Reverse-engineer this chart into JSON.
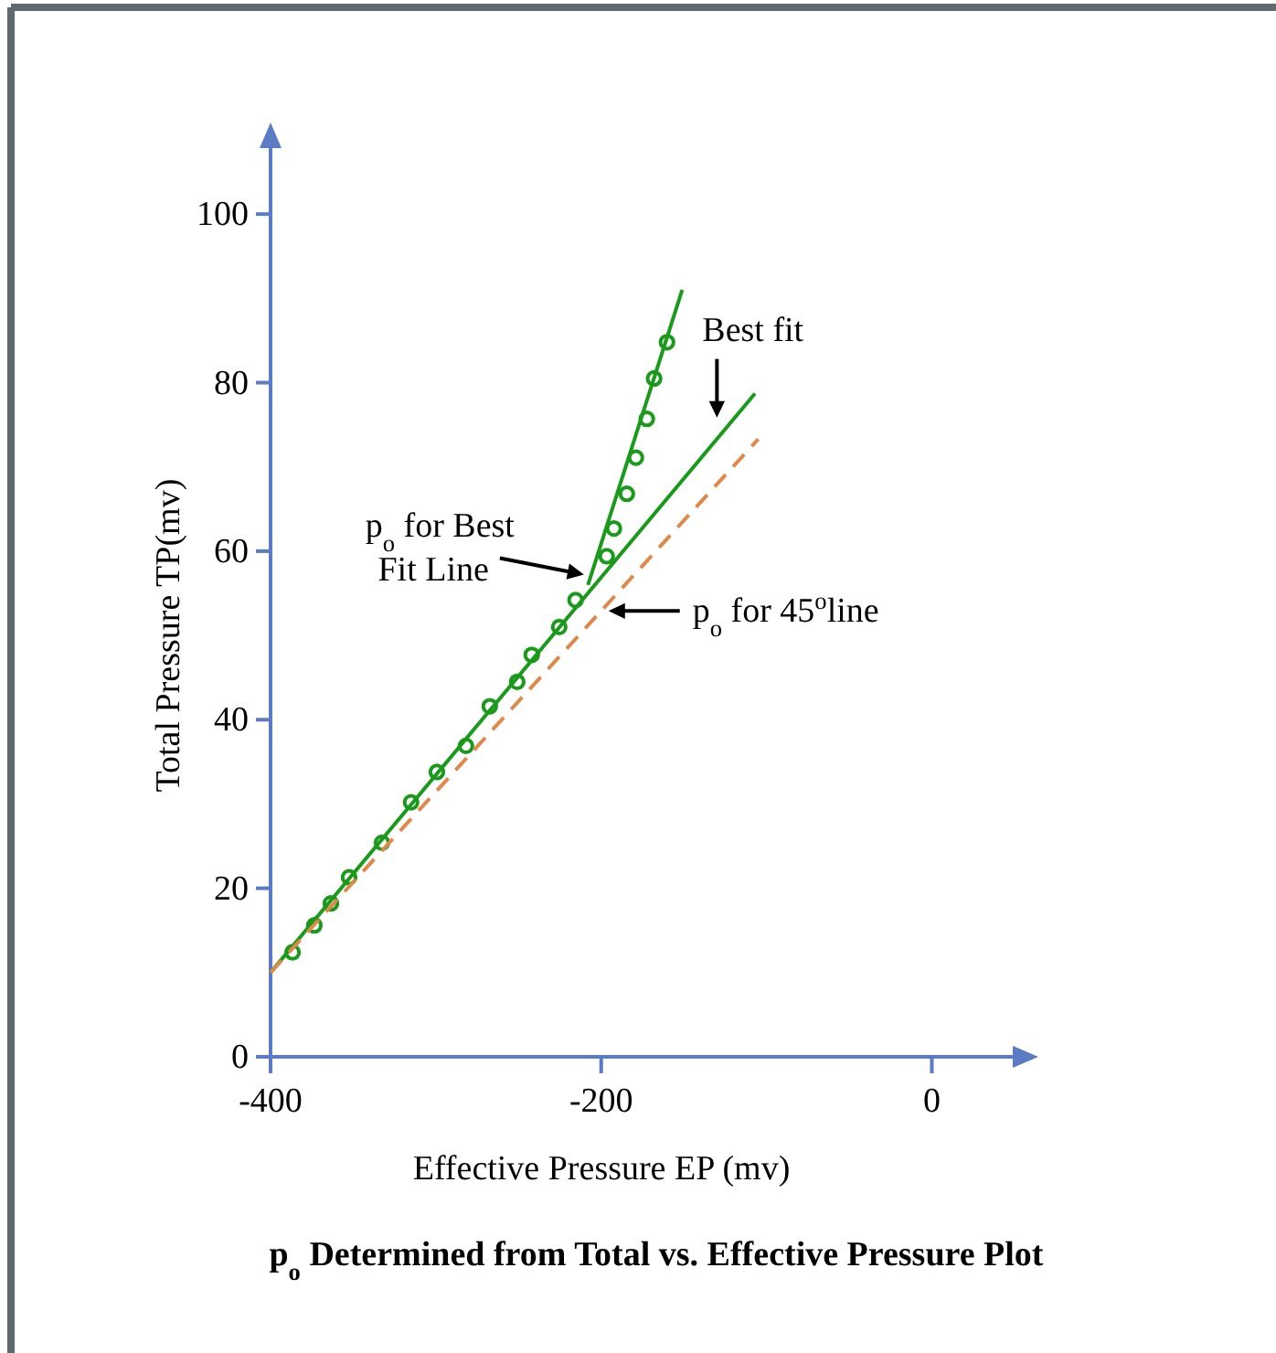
{
  "chart_data": {
    "type": "scatter",
    "title": "p$_{o}$ Determined from Total vs. Effective Pressure Plot",
    "xlabel": "Effective Pressure EP (mv)",
    "ylabel": "Total Pressure TP(mv)",
    "xlim": [
      -400,
      60
    ],
    "ylim": [
      0,
      110
    ],
    "xticks": [
      -400,
      -200,
      0
    ],
    "yticks": [
      0,
      20,
      40,
      60,
      80,
      100
    ],
    "grid": false,
    "series": [
      {
        "color": "#1a9a1a",
        "marker": "circle",
        "x": [
          -386.7,
          -373.5,
          -363.5,
          -352.5,
          -332.6,
          -315,
          -299.4,
          -281.8,
          -267.4,
          -250.8,
          -242,
          -225.4,
          -215.5,
          -196.7,
          -192.3,
          -184.5,
          -179,
          -172.4,
          -168,
          -160.2
        ],
        "values": [
          12.4,
          15.6,
          18.2,
          21.3,
          25.4,
          30.2,
          33.8,
          36.9,
          41.6,
          44.5,
          47.7,
          51,
          54.2,
          59.4,
          62.7,
          66.8,
          71.1,
          75.7,
          80.5,
          84.8
        ]
      },
      {
        "type": "line",
        "color": "#1a9a1a",
        "line_style": "solid",
        "marker": "none",
        "x": [
          -400,
          -107
        ],
        "values": [
          10,
          78.7
        ]
      },
      {
        "type": "line",
        "color": "#1a9a1a",
        "line_style": "solid",
        "marker": "none",
        "x": [
          -208,
          -151
        ],
        "values": [
          56,
          91
        ]
      },
      {
        "type": "line",
        "color": "#e0884a",
        "line_style": "dashed",
        "marker": "none",
        "x": [
          -400,
          -105
        ],
        "values": [
          10,
          73.3
        ]
      }
    ],
    "annotations": [
      {
        "text": "p$_{o}$ for Best Fit Line",
        "x": -206,
        "y": 57
      },
      {
        "text": "p$_{o}$ for 45$^{o}$line",
        "x": -200,
        "y": 52.9
      },
      {
        "text": "Best fit",
        "x": -130,
        "y": 75
      }
    ]
  }
}
